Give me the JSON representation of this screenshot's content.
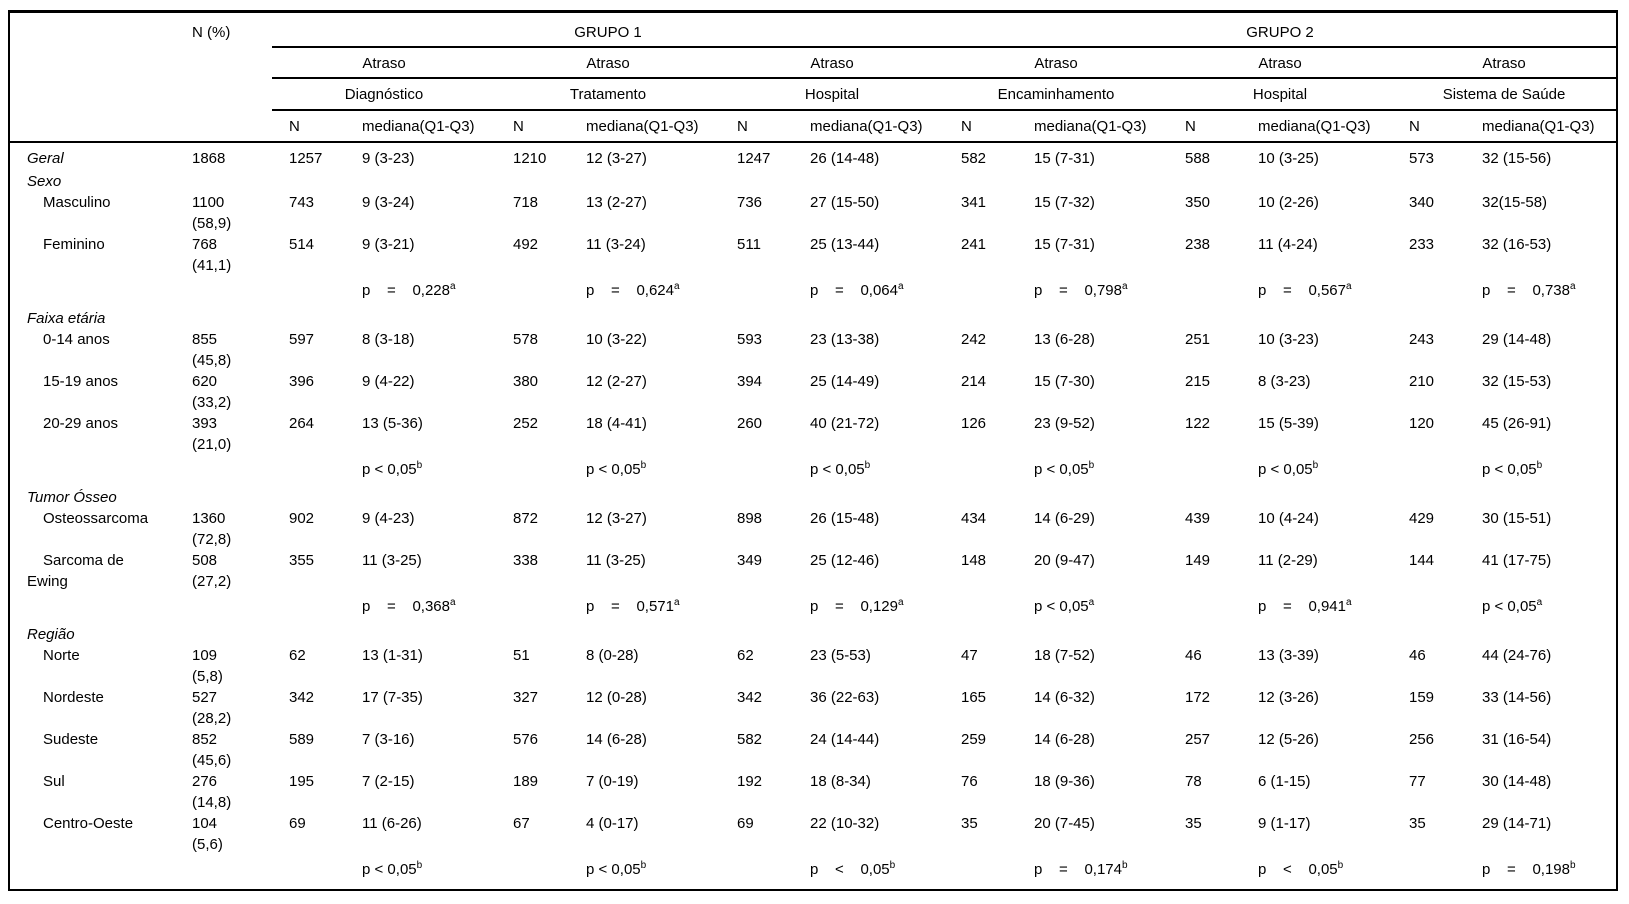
{
  "table": {
    "header": {
      "n_pct": "N (%)",
      "group1": "GRUPO 1",
      "group2": "GRUPO 2",
      "atraso": "Atraso",
      "subgroups": [
        "Diagnóstico",
        "Tratamento",
        "Hospital",
        "Encaminhamento",
        "Hospital",
        "Sistema de Saúde"
      ],
      "sub_n": "N",
      "sub_mediana": "mediana(Q1-Q3)"
    },
    "rows": [
      {
        "type": "data",
        "label": "Geral",
        "italic": true,
        "indent": false,
        "n": "1868",
        "pct": "",
        "cells": [
          "1257",
          "9 (3-23)",
          "1210",
          "12 (3-27)",
          "1247",
          "26 (14-48)",
          "582",
          "15 (7-31)",
          "588",
          "10 (3-25)",
          "573",
          "32 (15-56)"
        ]
      },
      {
        "type": "section",
        "label": "Sexo"
      },
      {
        "type": "data",
        "label": "Masculino",
        "italic": false,
        "indent": true,
        "n": "1100",
        "pct": "(58,9)",
        "cells": [
          "743",
          "9 (3-24)",
          "718",
          "13 (2-27)",
          "736",
          "27 (15-50)",
          "341",
          "15 (7-32)",
          "350",
          "10 (2-26)",
          "340",
          "32(15-58)"
        ]
      },
      {
        "type": "data",
        "label": "Feminino",
        "italic": false,
        "indent": true,
        "n": "768",
        "pct": "(41,1)",
        "cells": [
          "514",
          "9 (3-21)",
          "492",
          "11 (3-24)",
          "511",
          "25 (13-44)",
          "241",
          "15 (7-31)",
          "238",
          "11 (4-24)",
          "233",
          "32 (16-53)"
        ]
      },
      {
        "type": "p",
        "cells": [
          {
            "text": "p    =    0,228",
            "sup": "a"
          },
          {
            "text": "p    =    0,624",
            "sup": "a"
          },
          {
            "text": "p    =    0,064",
            "sup": "a"
          },
          {
            "text": "p    =    0,798",
            "sup": "a"
          },
          {
            "text": "p    =    0,567",
            "sup": "a"
          },
          {
            "text": "p    =    0,738",
            "sup": "a"
          }
        ]
      },
      {
        "type": "section",
        "label": "Faixa etária"
      },
      {
        "type": "data",
        "label": "0-14 anos",
        "italic": false,
        "indent": true,
        "n": "855",
        "pct": "(45,8)",
        "cells": [
          "597",
          "8 (3-18)",
          "578",
          "10 (3-22)",
          "593",
          "23 (13-38)",
          "242",
          "13 (6-28)",
          "251",
          "10 (3-23)",
          "243",
          "29 (14-48)"
        ]
      },
      {
        "type": "data",
        "label": "15-19 anos",
        "italic": false,
        "indent": true,
        "n": "620",
        "pct": "(33,2)",
        "cells": [
          "396",
          "9 (4-22)",
          "380",
          "12 (2-27)",
          "394",
          "25 (14-49)",
          "214",
          "15 (7-30)",
          "215",
          "8 (3-23)",
          "210",
          "32 (15-53)"
        ]
      },
      {
        "type": "data",
        "label": "20-29 anos",
        "italic": false,
        "indent": true,
        "n": "393",
        "pct": "(21,0)",
        "cells": [
          "264",
          "13 (5-36)",
          "252",
          "18 (4-41)",
          "260",
          "40 (21-72)",
          "126",
          "23 (9-52)",
          "122",
          "15 (5-39)",
          "120",
          "45 (26-91)"
        ]
      },
      {
        "type": "p",
        "cells": [
          {
            "text": "p < 0,05",
            "sup": "b"
          },
          {
            "text": "p < 0,05",
            "sup": "b"
          },
          {
            "text": "p < 0,05",
            "sup": "b"
          },
          {
            "text": "p < 0,05",
            "sup": "b"
          },
          {
            "text": "p < 0,05",
            "sup": "b"
          },
          {
            "text": "p < 0,05",
            "sup": "b"
          }
        ]
      },
      {
        "type": "section",
        "label": "Tumor Ósseo"
      },
      {
        "type": "data",
        "label": "Osteossarcoma",
        "italic": false,
        "indent": true,
        "n": "1360",
        "pct": "(72,8)",
        "cells": [
          "902",
          "9 (4-23)",
          "872",
          "12 (3-27)",
          "898",
          "26 (15-48)",
          "434",
          "14 (6-29)",
          "439",
          "10 (4-24)",
          "429",
          "30 (15-51)"
        ]
      },
      {
        "type": "data",
        "label": "Sarcoma de\nEwing",
        "italic": false,
        "indent": true,
        "n": "508",
        "pct": "(27,2)",
        "cells": [
          "355",
          "11 (3-25)",
          "338",
          "11 (3-25)",
          "349",
          "25 (12-46)",
          "148",
          "20 (9-47)",
          "149",
          "11 (2-29)",
          "144",
          "41 (17-75)"
        ]
      },
      {
        "type": "p",
        "cells": [
          {
            "text": "p    =    0,368",
            "sup": "a"
          },
          {
            "text": "p    =    0,571",
            "sup": "a"
          },
          {
            "text": "p    =    0,129",
            "sup": "a"
          },
          {
            "text": "p < 0,05",
            "sup": "a"
          },
          {
            "text": "p    =    0,941",
            "sup": "a"
          },
          {
            "text": "p < 0,05",
            "sup": "a"
          }
        ]
      },
      {
        "type": "section",
        "label": "Região"
      },
      {
        "type": "data",
        "label": "Norte",
        "italic": false,
        "indent": true,
        "n": "109",
        "pct": "(5,8)",
        "cells": [
          "62",
          "13 (1-31)",
          "51",
          "8 (0-28)",
          "62",
          "23 (5-53)",
          "47",
          "18 (7-52)",
          "46",
          "13 (3-39)",
          "46",
          "44 (24-76)"
        ]
      },
      {
        "type": "data",
        "label": "Nordeste",
        "italic": false,
        "indent": true,
        "n": "527",
        "pct": "(28,2)",
        "cells": [
          "342",
          "17 (7-35)",
          "327",
          "12 (0-28)",
          "342",
          "36 (22-63)",
          "165",
          "14 (6-32)",
          "172",
          "12 (3-26)",
          "159",
          "33 (14-56)"
        ]
      },
      {
        "type": "data",
        "label": "Sudeste",
        "italic": false,
        "indent": true,
        "n": "852",
        "pct": "(45,6)",
        "cells": [
          "589",
          "7 (3-16)",
          "576",
          "14 (6-28)",
          "582",
          "24 (14-44)",
          "259",
          "14 (6-28)",
          "257",
          "12 (5-26)",
          "256",
          "31 (16-54)"
        ]
      },
      {
        "type": "data",
        "label": "Sul",
        "italic": false,
        "indent": true,
        "n": "276",
        "pct": "(14,8)",
        "cells": [
          "195",
          "7 (2-15)",
          "189",
          "7 (0-19)",
          "192",
          "18 (8-34)",
          "76",
          "18 (9-36)",
          "78",
          "6 (1-15)",
          "77",
          "30 (14-48)"
        ]
      },
      {
        "type": "data",
        "label": "Centro-Oeste",
        "italic": false,
        "indent": true,
        "n": "104",
        "pct": "(5,6)",
        "cells": [
          "69",
          "11 (6-26)",
          "67",
          "4 (0-17)",
          "69",
          "22 (10-32)",
          "35",
          "20 (7-45)",
          "35",
          "9 (1-17)",
          "35",
          "29 (14-71)"
        ]
      },
      {
        "type": "p",
        "cells": [
          {
            "text": "p < 0,05",
            "sup": "b"
          },
          {
            "text": "p < 0,05",
            "sup": "b"
          },
          {
            "text": "p    <    0,05",
            "sup": "b"
          },
          {
            "text": "p    =    0,174",
            "sup": "b"
          },
          {
            "text": "p    <    0,05",
            "sup": "b"
          },
          {
            "text": "p    =    0,198",
            "sup": "b"
          }
        ]
      }
    ]
  }
}
